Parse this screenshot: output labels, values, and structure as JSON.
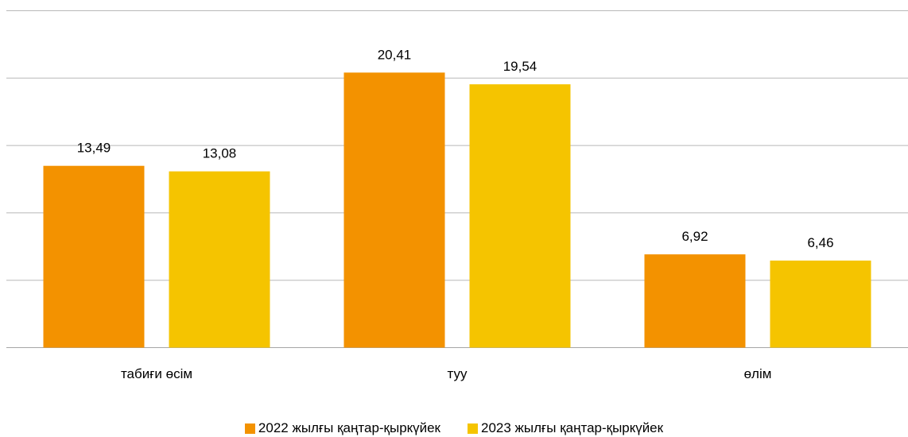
{
  "chart_data": {
    "type": "bar",
    "categories": [
      "табиғи өсім",
      "туу",
      "өлім"
    ],
    "series": [
      {
        "name": "2022 жылғы қаңтар-қыркүйек",
        "values": [
          13.49,
          20.41,
          6.92
        ],
        "labels": [
          "13,49",
          "20,41",
          "6,92"
        ],
        "color": "#F39200"
      },
      {
        "name": "2023 жылғы қаңтар-қыркүйек",
        "values": [
          13.08,
          19.54,
          6.46
        ],
        "labels": [
          "13,08",
          "19,54",
          "6,46"
        ],
        "color": "#F5C400"
      }
    ],
    "ylim": [
      0,
      25
    ],
    "grid": true,
    "legend_position": "bottom"
  }
}
